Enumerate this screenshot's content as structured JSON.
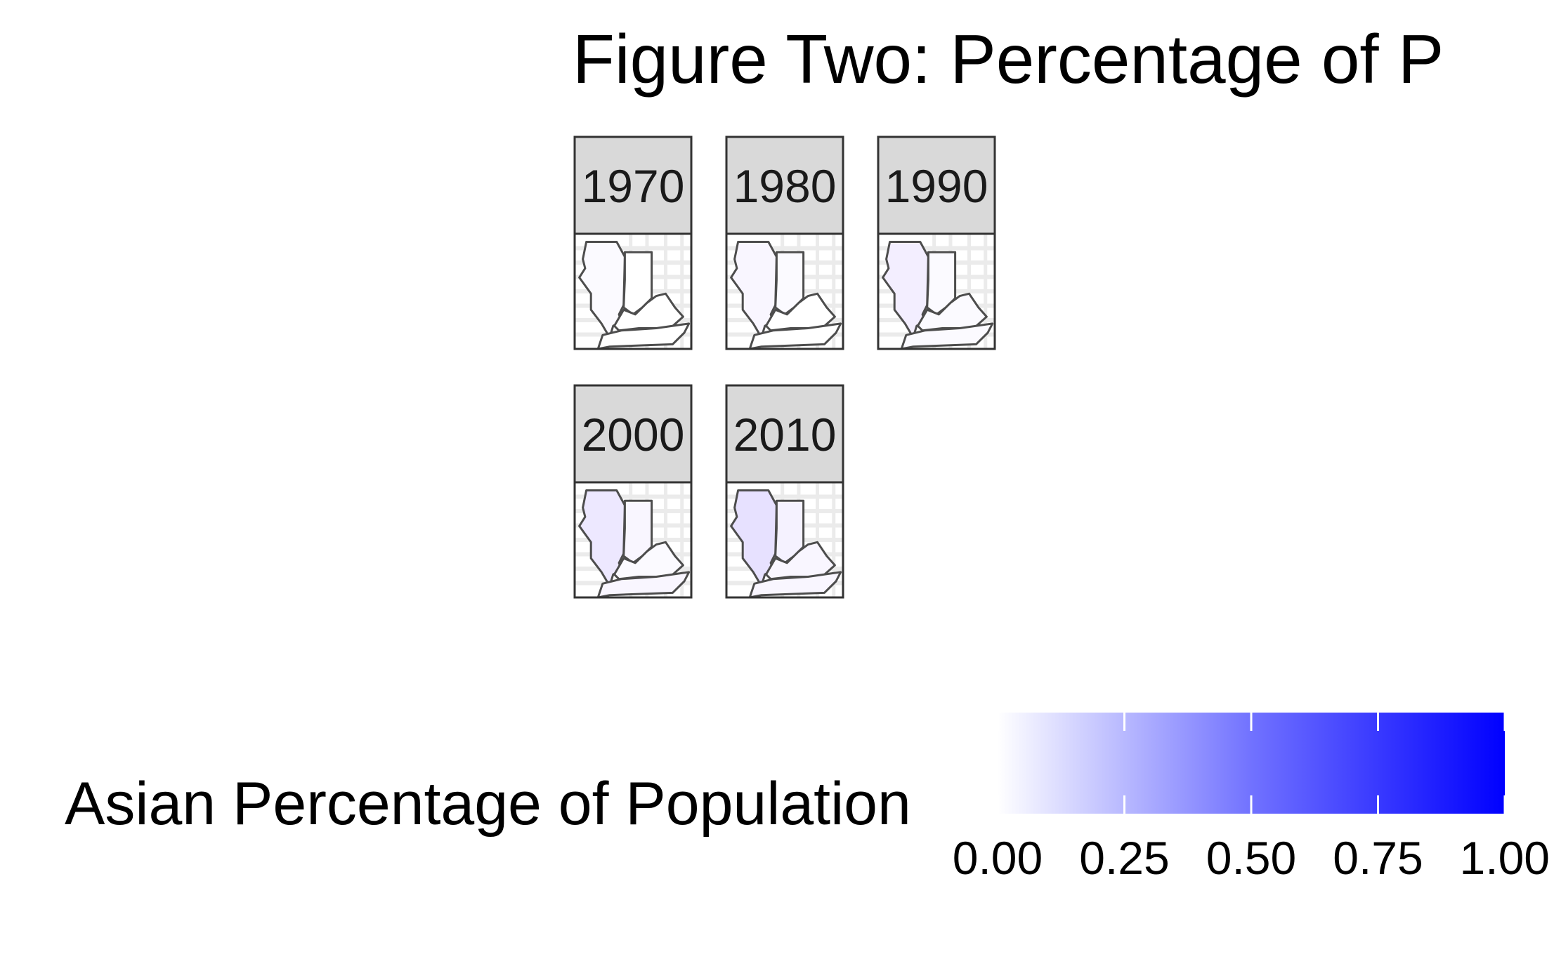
{
  "chart_data": {
    "type": "choropleth-facet",
    "title": "Figure Two: Percentage of P",
    "facets": [
      {
        "label": "1970",
        "values": {
          "illinois": 0.01,
          "indiana": 0.0,
          "kentucky": 0.0,
          "tennessee": 0.0
        }
      },
      {
        "label": "1980",
        "values": {
          "illinois": 0.02,
          "indiana": 0.01,
          "kentucky": 0.0,
          "tennessee": 0.0
        }
      },
      {
        "label": "1990",
        "values": {
          "illinois": 0.04,
          "indiana": 0.01,
          "kentucky": 0.01,
          "tennessee": 0.01
        }
      },
      {
        "label": "2000",
        "values": {
          "illinois": 0.06,
          "indiana": 0.02,
          "kentucky": 0.01,
          "tennessee": 0.02
        }
      },
      {
        "label": "2010",
        "values": {
          "illinois": 0.08,
          "indiana": 0.03,
          "kentucky": 0.02,
          "tennessee": 0.02
        }
      }
    ],
    "legend": {
      "title": "Asian Percentage of Population",
      "ticks": [
        "0.00",
        "0.25",
        "0.50",
        "0.75",
        "1.00"
      ],
      "range": [
        0,
        1
      ],
      "low_color": "#ffffff",
      "high_color": "#0000ff"
    },
    "grid": true
  }
}
